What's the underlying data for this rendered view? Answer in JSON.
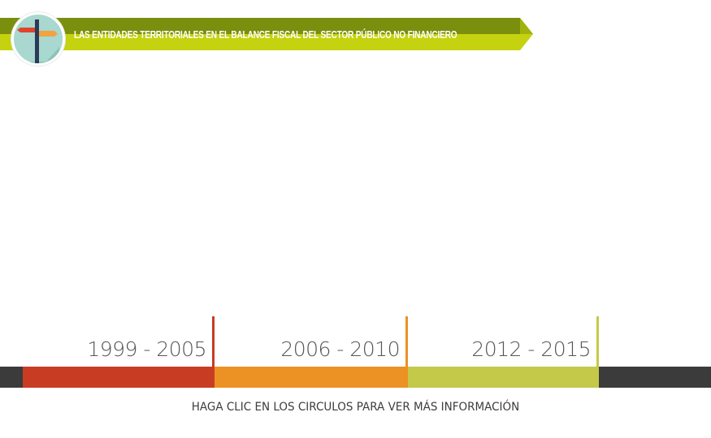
{
  "header": {
    "title": "LAS ENTIDADES TERRITORIALES EN EL BALANCE FISCAL DEL SECTOR PÚBLICO NO FINANCIERO",
    "icon": "signpost-icon",
    "colors": {
      "banner_top": "#7a8f0e",
      "banner_bottom": "#c5d20f",
      "circle": "#a8d8cf"
    }
  },
  "timeline": {
    "periods": [
      {
        "label": "1999 - 2005",
        "color": "#c83c24"
      },
      {
        "label": "2006 - 2010",
        "color": "#ec9124"
      },
      {
        "label": "2012 - 2015",
        "color": "#c4c94a"
      }
    ],
    "track_color": "#3b3b3b"
  },
  "instruction": "HAGA CLIC EN LOS CIRCULOS PARA VER MÁS  INFORMACIÓN"
}
